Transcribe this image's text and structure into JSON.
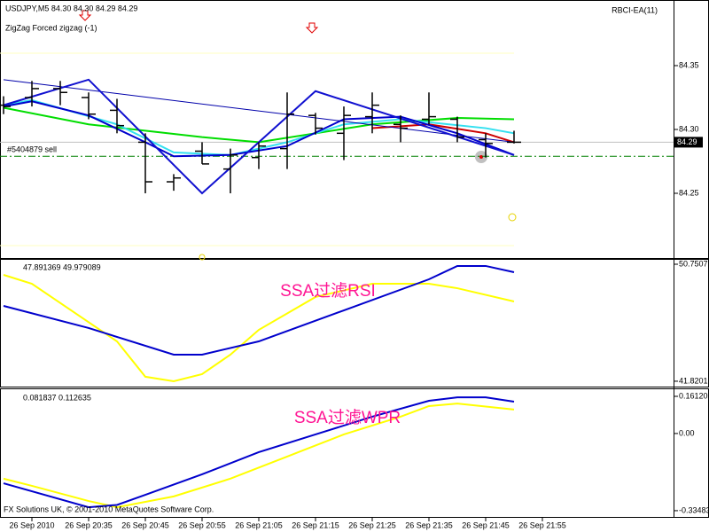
{
  "chart_data": [
    {
      "type": "ohlc",
      "header": "USDJPY,M5  84.30 84.30 84.29 84.29",
      "annotation": "ZigZag Forced zigzag (-1)",
      "indicator": "RBCI-EA(11)",
      "categories": [
        null,
        "26 Sep 2010",
        null,
        "26 Sep 20:35",
        null,
        "26 Sep 20:45",
        null,
        "26 Sep 20:55",
        null,
        "26 Sep 21:05",
        null,
        "26 Sep 21:15",
        null,
        "26 Sep 21:25",
        null,
        "26 Sep 21:35",
        null,
        "26 Sep 21:45",
        null,
        "26 Sep 21:55"
      ],
      "open": [
        84.319,
        84.325,
        84.332,
        84.325,
        84.315,
        84.29,
        84.259,
        84.283,
        84.269,
        84.278,
        84.285,
        84.311,
        84.297,
        84.31,
        84.304,
        84.308,
        84.308,
        84.292,
        84.29,
        null
      ],
      "high": [
        84.326,
        84.338,
        84.338,
        84.329,
        84.324,
        84.297,
        84.265,
        84.29,
        84.285,
        84.29,
        84.329,
        84.313,
        84.318,
        84.329,
        84.311,
        84.329,
        84.31,
        84.297,
        84.299,
        null
      ],
      "low": [
        84.312,
        84.318,
        84.319,
        84.308,
        84.297,
        84.25,
        84.252,
        84.273,
        84.25,
        84.269,
        84.269,
        84.296,
        84.276,
        84.297,
        84.29,
        84.304,
        84.29,
        84.278,
        84.289,
        null
      ],
      "close": [
        84.318,
        84.332,
        84.329,
        84.312,
        84.303,
        84.259,
        84.262,
        84.273,
        84.28,
        84.287,
        84.312,
        84.301,
        84.311,
        84.319,
        84.301,
        84.31,
        84.294,
        84.289,
        84.29,
        null
      ],
      "bar_color": "#000000",
      "series": [
        {
          "color": "#00dd00",
          "width": 2,
          "x": [
            0,
            3,
            7,
            9,
            13,
            16,
            18
          ],
          "values": [
            84.317,
            84.304,
            84.294,
            84.29,
            84.304,
            84.309,
            84.308
          ]
        },
        {
          "color": "#cc0000",
          "width": 2,
          "x": [
            13,
            15,
            17,
            18
          ],
          "values": [
            84.301,
            84.304,
            84.297,
            84.29
          ]
        },
        {
          "color": "#33e0f0",
          "width": 2,
          "x": [
            0,
            1,
            4,
            6,
            8,
            10,
            12,
            14,
            17,
            18
          ],
          "values": [
            84.319,
            84.323,
            84.304,
            84.282,
            84.28,
            84.29,
            84.304,
            84.308,
            84.301,
            84.297
          ]
        },
        {
          "color": "#0000cc",
          "width": 2,
          "x": [
            0,
            1,
            3,
            5,
            6,
            8,
            10,
            12,
            14,
            16,
            18
          ],
          "values": [
            84.318,
            84.322,
            84.311,
            84.29,
            84.279,
            84.28,
            84.287,
            84.308,
            84.31,
            84.297,
            84.28
          ]
        },
        {
          "color": "#0000aa",
          "width": 1,
          "x": [
            0,
            18
          ],
          "values": [
            84.339,
            84.29
          ]
        },
        {
          "color": "#1010d0",
          "width": 2,
          "x": [
            0,
            3,
            7,
            11,
            18
          ],
          "values": [
            84.319,
            84.339,
            84.25,
            84.33,
            84.28
          ]
        }
      ],
      "order_line": {
        "label": "#5404879 sell",
        "value": 84.279,
        "color": "#008000"
      },
      "current_price": 84.29,
      "ylim": [
        84.2,
        84.4
      ],
      "yticks": [
        84.35,
        {
          "value": 84.3,
          "label": "84.30"
        },
        84.25
      ]
    },
    {
      "type": "line",
      "header": "47.891369 49.979089",
      "title": "SSA过滤RSI",
      "series": [
        {
          "color": "#ffff00",
          "width": 2,
          "x": [
            0,
            1,
            4,
            5,
            6,
            7,
            8,
            9,
            11,
            13,
            15,
            16,
            18
          ],
          "values": [
            49.94,
            49.26,
            44.86,
            42.16,
            41.82,
            42.36,
            43.85,
            45.74,
            48.25,
            49.26,
            49.26,
            48.92,
            47.91
          ]
        },
        {
          "color": "#0000cc",
          "width": 2,
          "x": [
            0,
            3,
            6,
            7,
            9,
            12,
            15,
            16,
            17,
            18
          ],
          "values": [
            47.57,
            45.88,
            43.85,
            43.85,
            44.86,
            47.23,
            49.6,
            50.62,
            50.62,
            50.14
          ]
        }
      ],
      "ylim": [
        41.41,
        51.09
      ],
      "yticks": [
        50.75071,
        41.82012
      ]
    },
    {
      "type": "line",
      "header": "0.081837 0.112635",
      "title": "SSA过滤WPR",
      "footer": "FX Solutions UK, © 2001-2010 MetaQuotes Software Corp.",
      "series": [
        {
          "color": "#ffff00",
          "width": 2,
          "x": [
            0,
            1,
            3,
            4,
            6,
            8,
            10,
            12,
            14,
            15,
            16,
            18
          ],
          "values": [
            -0.196,
            -0.227,
            -0.293,
            -0.32,
            -0.273,
            -0.196,
            -0.1,
            -0.004,
            0.073,
            0.119,
            0.13,
            0.104
          ]
        },
        {
          "color": "#0000cc",
          "width": 2,
          "x": [
            0,
            3,
            4,
            5,
            7,
            9,
            11,
            13,
            15,
            16,
            17,
            18
          ],
          "values": [
            -0.216,
            -0.32,
            -0.31,
            -0.266,
            -0.177,
            -0.081,
            -0.004,
            0.073,
            0.142,
            0.157,
            0.157,
            0.138
          ]
        }
      ],
      "ylim": [
        -0.362,
        0.192
      ],
      "yticks": [
        0.161202,
        {
          "value": 0,
          "label": "0.00"
        },
        -0.33483
      ]
    }
  ]
}
